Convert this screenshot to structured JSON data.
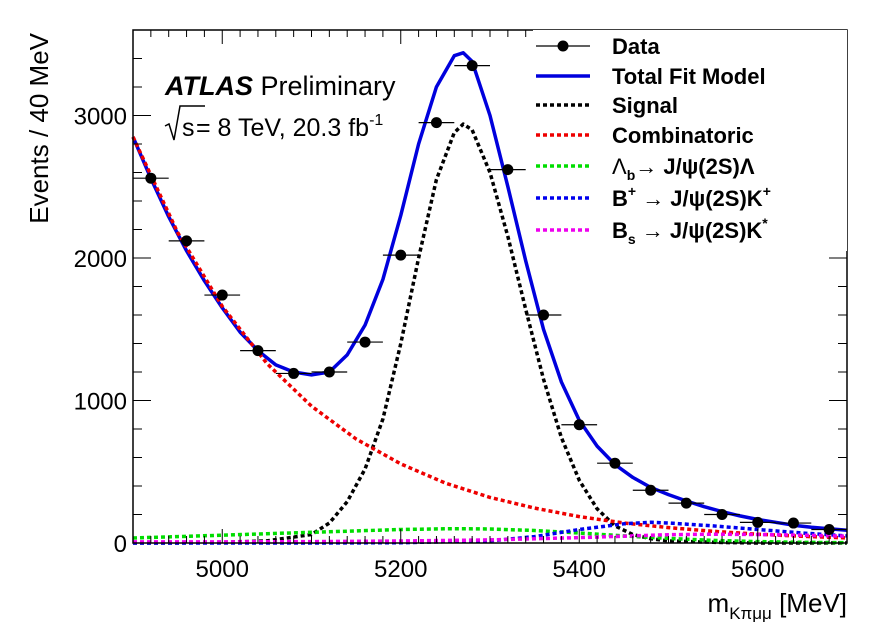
{
  "chart_data": {
    "type": "line",
    "title": "",
    "experiment": "ATLAS",
    "experiment_status": "Preliminary",
    "energy_label": "= 8 TeV, 20.3 fb",
    "energy_sup": "-1",
    "xlabel": "m",
    "xlabel_sub": "Kπμμ",
    "xlabel_unit": "[MeV]",
    "ylabel": "Events / 40 MeV",
    "xlim": [
      4900,
      5700
    ],
    "ylim": [
      0,
      3600
    ],
    "xticks": [
      5000,
      5200,
      5400,
      5600
    ],
    "yticks": [
      0,
      1000,
      2000,
      3000
    ],
    "colors": {
      "data": "#000000",
      "total": "#0000dd",
      "signal": "#000000",
      "combinatoric": "#ee0000",
      "lambda_b": "#00dd00",
      "bplus": "#0000ee",
      "bs": "#ee00ee"
    },
    "data_points": {
      "name": "Data",
      "x": [
        4920,
        4960,
        5000,
        5040,
        5080,
        5120,
        5160,
        5200,
        5240,
        5280,
        5320,
        5360,
        5400,
        5440,
        5480,
        5520,
        5560,
        5600,
        5640,
        5680
      ],
      "y": [
        2560,
        2120,
        1740,
        1350,
        1190,
        1200,
        1410,
        2020,
        2950,
        3350,
        2620,
        1600,
        830,
        560,
        370,
        280,
        200,
        145,
        140,
        95
      ],
      "xerr": 20
    },
    "series": [
      {
        "key": "total",
        "name": "Total Fit Model",
        "style": "solid",
        "x": [
          4900,
          4920,
          4940,
          4960,
          4980,
          5000,
          5020,
          5040,
          5060,
          5080,
          5100,
          5120,
          5140,
          5160,
          5180,
          5200,
          5220,
          5240,
          5260,
          5270,
          5280,
          5300,
          5320,
          5340,
          5360,
          5380,
          5400,
          5420,
          5440,
          5460,
          5480,
          5500,
          5520,
          5540,
          5560,
          5580,
          5600,
          5620,
          5640,
          5660,
          5680,
          5700
        ],
        "y": [
          2850,
          2560,
          2290,
          2050,
          1840,
          1650,
          1480,
          1350,
          1250,
          1200,
          1180,
          1200,
          1320,
          1530,
          1850,
          2300,
          2800,
          3200,
          3420,
          3440,
          3380,
          3000,
          2500,
          1980,
          1500,
          1130,
          860,
          680,
          550,
          460,
          390,
          340,
          295,
          255,
          220,
          190,
          165,
          145,
          125,
          110,
          100,
          90
        ]
      },
      {
        "key": "signal",
        "name": "Signal",
        "style": "dotted",
        "x": [
          4900,
          4950,
          5000,
          5050,
          5100,
          5120,
          5140,
          5160,
          5180,
          5200,
          5220,
          5240,
          5260,
          5270,
          5280,
          5300,
          5320,
          5340,
          5360,
          5380,
          5400,
          5420,
          5440,
          5460,
          5480,
          5500,
          5550,
          5600,
          5650,
          5700
        ],
        "y": [
          0,
          0,
          5,
          15,
          60,
          140,
          290,
          520,
          870,
          1400,
          2000,
          2550,
          2880,
          2940,
          2900,
          2600,
          2150,
          1640,
          1150,
          740,
          440,
          240,
          120,
          60,
          30,
          15,
          5,
          0,
          0,
          0
        ]
      },
      {
        "key": "combinatoric",
        "name": "Combinatoric",
        "style": "dotted",
        "x": [
          4900,
          4950,
          5000,
          5050,
          5100,
          5150,
          5200,
          5250,
          5300,
          5350,
          5400,
          5450,
          5500,
          5550,
          5600,
          5650,
          5700
        ],
        "y": [
          2850,
          2180,
          1660,
          1260,
          960,
          730,
          555,
          420,
          320,
          245,
          185,
          140,
          108,
          82,
          62,
          47,
          36
        ]
      },
      {
        "key": "lambda_b",
        "name": "Λ_b → J/ψ(2S)Λ",
        "style": "dotted",
        "x": [
          4900,
          4950,
          5000,
          5050,
          5100,
          5150,
          5200,
          5250,
          5275,
          5300,
          5350,
          5400,
          5450,
          5500,
          5550,
          5600,
          5650,
          5700
        ],
        "y": [
          35,
          45,
          55,
          65,
          75,
          85,
          95,
          100,
          100,
          98,
          88,
          70,
          50,
          32,
          18,
          10,
          5,
          2
        ]
      },
      {
        "key": "bplus",
        "name": "B⁺ → J/ψ(2S)K⁺",
        "style": "dotted",
        "x": [
          4900,
          5000,
          5100,
          5200,
          5300,
          5350,
          5400,
          5450,
          5480,
          5500,
          5550,
          5600,
          5650,
          5700
        ],
        "y": [
          0,
          0,
          0,
          2,
          15,
          45,
          95,
          135,
          145,
          140,
          120,
          95,
          70,
          50
        ]
      },
      {
        "key": "bs",
        "name": "B_s → J/ψ(2S)K*",
        "style": "dotted",
        "x": [
          4900,
          5000,
          5100,
          5200,
          5300,
          5400,
          5450,
          5500,
          5550,
          5600,
          5650,
          5700
        ],
        "y": [
          8,
          8,
          10,
          14,
          22,
          38,
          48,
          58,
          62,
          60,
          55,
          48
        ]
      }
    ],
    "legend": {
      "position": "top-right",
      "entries": [
        {
          "key": "data",
          "text": "Data"
        },
        {
          "key": "total",
          "text": "Total Fit Model"
        },
        {
          "key": "signal",
          "text": "Signal"
        },
        {
          "key": "combinatoric",
          "text": "Combinatoric"
        },
        {
          "key": "lambda_b",
          "text": "Λ",
          "sub": "b",
          "rest": "→ J/ψ(2S)Λ"
        },
        {
          "key": "bplus",
          "text": "B",
          "sup": "+",
          "rest": " → J/ψ(2S)K",
          "rest_sup": "+"
        },
        {
          "key": "bs",
          "text": "B",
          "sub": "s",
          "rest": " → J/ψ(2S)K",
          "rest_sup": "*"
        }
      ]
    }
  }
}
